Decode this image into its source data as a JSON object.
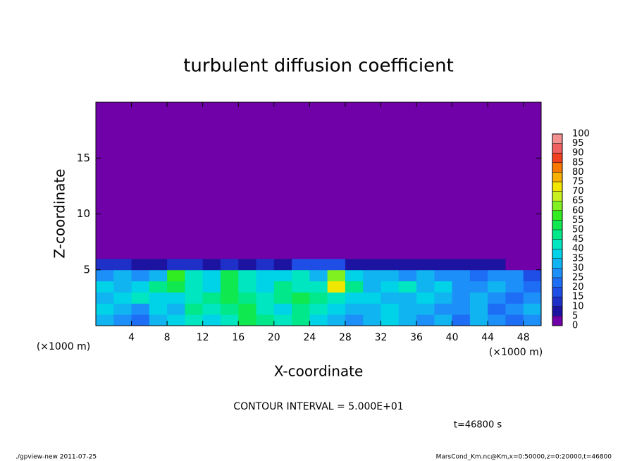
{
  "chart_data": {
    "type": "heatmap",
    "title": "turbulent diffusion coefficient",
    "xlabel": "X-coordinate",
    "ylabel": "Z-coordinate",
    "x_unit": "(×1000 m)",
    "y_unit": "(×1000 m)",
    "contour_note": "CONTOUR INTERVAL = 5.000E+01",
    "time_note": "t=46800 s",
    "footer_left": "./gpview-new  2011-07-25",
    "footer_right": "MarsCond_Km.nc@Km,x=0:50000,z=0:20000,t=46800",
    "xlim": [
      0,
      50
    ],
    "ylim": [
      0,
      20
    ],
    "xticks": [
      4,
      8,
      12,
      16,
      20,
      24,
      28,
      32,
      36,
      40,
      44,
      48
    ],
    "yticks": [
      5,
      10,
      15
    ],
    "x_bins": [
      0,
      2,
      4,
      6,
      8,
      10,
      12,
      14,
      16,
      18,
      20,
      22,
      24,
      26,
      28,
      30,
      32,
      34,
      36,
      38,
      40,
      42,
      44,
      46,
      48,
      50
    ],
    "z_bins": [
      0,
      1,
      2,
      3,
      4,
      5,
      6,
      20
    ],
    "z": [
      [
        30,
        25,
        20,
        30,
        35,
        40,
        35,
        40,
        50,
        45,
        40,
        45,
        35,
        30,
        25,
        30,
        35,
        30,
        25,
        30,
        20,
        30,
        25,
        20,
        25
      ],
      [
        35,
        30,
        25,
        35,
        30,
        45,
        40,
        45,
        50,
        40,
        35,
        45,
        40,
        35,
        30,
        30,
        35,
        30,
        30,
        25,
        25,
        30,
        20,
        25,
        30
      ],
      [
        30,
        35,
        40,
        35,
        35,
        40,
        45,
        50,
        45,
        40,
        45,
        50,
        45,
        40,
        35,
        35,
        30,
        30,
        35,
        30,
        25,
        30,
        25,
        20,
        25
      ],
      [
        35,
        30,
        35,
        45,
        50,
        40,
        35,
        50,
        40,
        35,
        45,
        40,
        40,
        70,
        45,
        30,
        35,
        40,
        30,
        35,
        25,
        25,
        30,
        25,
        20
      ],
      [
        25,
        30,
        25,
        30,
        55,
        40,
        35,
        50,
        40,
        35,
        35,
        40,
        30,
        60,
        35,
        30,
        30,
        25,
        30,
        25,
        25,
        20,
        25,
        25,
        15
      ],
      [
        10,
        10,
        5,
        5,
        10,
        10,
        5,
        10,
        5,
        10,
        5,
        15,
        15,
        15,
        5,
        5,
        5,
        5,
        5,
        5,
        5,
        5,
        5,
        0,
        0
      ],
      [
        0,
        0,
        0,
        0,
        0,
        0,
        0,
        0,
        0,
        0,
        0,
        0,
        0,
        0,
        0,
        0,
        0,
        0,
        0,
        0,
        0,
        0,
        0,
        0,
        0
      ]
    ],
    "levels": [
      0,
      5,
      10,
      15,
      20,
      25,
      30,
      35,
      40,
      45,
      50,
      55,
      60,
      65,
      70,
      75,
      80,
      85,
      90,
      95,
      100
    ],
    "colors": [
      "#7000a8",
      "#1c14a0",
      "#1e30c8",
      "#1f4ee6",
      "#1e6ef5",
      "#1c90f8",
      "#10b4f0",
      "#00d2e8",
      "#00e6c0",
      "#00e88a",
      "#10e850",
      "#30ec20",
      "#80f020",
      "#c8f020",
      "#f0e600",
      "#f8b000",
      "#f87800",
      "#f04020",
      "#f06060",
      "#f49090"
    ]
  }
}
